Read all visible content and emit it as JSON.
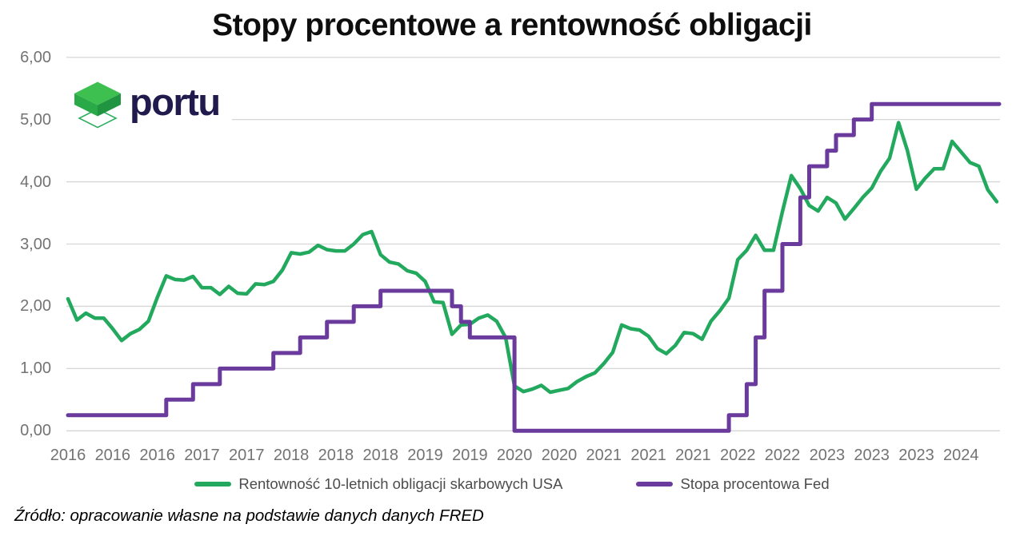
{
  "title": "Stopy procentowe a rentowność obligacji",
  "logo": {
    "brand": "portu"
  },
  "source_note": "Źródło: opracowanie własne na podstawie danych danych FRED",
  "colors": {
    "bond_yield_green": "#22a95e",
    "fed_rate_purple": "#6a3a9d",
    "gridline": "#d6d6d6",
    "axis_text": "#737373",
    "legend_text": "#4c4c4c",
    "title_text": "#0e0e0e",
    "brand_navy": "#211b4d",
    "cube_top": "#3dc04f",
    "cube_left": "#2aa948",
    "cube_right": "#209441",
    "cube_outline": "#2fae63"
  },
  "legend": [
    {
      "id": "bond-yield",
      "label": "Rentowność 10-letnich obligacji skarbowych USA",
      "color": "#22a95e"
    },
    {
      "id": "fed-rate",
      "label": "Stopa procentowa Fed",
      "color": "#6a3a9d"
    }
  ],
  "chart_data": {
    "type": "line",
    "title": "Stopy procentowe a rentowność obligacji",
    "xlabel": "",
    "ylabel": "",
    "ylim": [
      0,
      6
    ],
    "grid": "horizontal",
    "legend_position": "bottom",
    "y_tick_labels": [
      "6,00",
      "5,00",
      "4,00",
      "3,00",
      "2,00",
      "1,00",
      "0,00"
    ],
    "x_tick_labels": [
      "2016",
      "2016",
      "2016",
      "2017",
      "2017",
      "2018",
      "2018",
      "2018",
      "2019",
      "2019",
      "2020",
      "2020",
      "2021",
      "2021",
      "2021",
      "2022",
      "2022",
      "2023",
      "2023",
      "2023",
      "2024"
    ],
    "x_start_month": "2016-01",
    "x_interval": "monthly",
    "x_tick_every_months": 5,
    "series": [
      {
        "id": "bond-yield",
        "name": "Rentowność 10-letnich obligacji skarbowych USA",
        "color": "#22a95e",
        "style": "line",
        "values": [
          2.12,
          1.78,
          1.89,
          1.81,
          1.81,
          1.64,
          1.45,
          1.56,
          1.63,
          1.76,
          2.14,
          2.49,
          2.43,
          2.42,
          2.48,
          2.3,
          2.3,
          2.19,
          2.32,
          2.21,
          2.2,
          2.36,
          2.35,
          2.4,
          2.58,
          2.86,
          2.84,
          2.87,
          2.98,
          2.91,
          2.89,
          2.89,
          3.0,
          3.15,
          3.2,
          2.83,
          2.71,
          2.68,
          2.57,
          2.53,
          2.4,
          2.07,
          2.06,
          1.55,
          1.7,
          1.71,
          1.81,
          1.86,
          1.76,
          1.5,
          0.72,
          0.63,
          0.67,
          0.73,
          0.62,
          0.65,
          0.68,
          0.79,
          0.87,
          0.93,
          1.08,
          1.26,
          1.7,
          1.64,
          1.62,
          1.52,
          1.32,
          1.24,
          1.37,
          1.58,
          1.56,
          1.47,
          1.76,
          1.93,
          2.13,
          2.75,
          2.9,
          3.14,
          2.9,
          2.9,
          3.52,
          4.1,
          3.89,
          3.62,
          3.53,
          3.75,
          3.66,
          3.4,
          3.57,
          3.75,
          3.9,
          4.17,
          4.38,
          4.95,
          4.5,
          3.88,
          4.06,
          4.21,
          4.21,
          4.65,
          4.48,
          4.31,
          4.25,
          3.87,
          3.68
        ]
      },
      {
        "id": "fed-rate",
        "name": "Stopa procentowa Fed",
        "color": "#6a3a9d",
        "style": "step",
        "values": [
          0.25,
          0.25,
          0.25,
          0.25,
          0.25,
          0.25,
          0.25,
          0.25,
          0.25,
          0.25,
          0.25,
          0.5,
          0.5,
          0.5,
          0.75,
          0.75,
          0.75,
          1.0,
          1.0,
          1.0,
          1.0,
          1.0,
          1.0,
          1.25,
          1.25,
          1.25,
          1.5,
          1.5,
          1.5,
          1.75,
          1.75,
          1.75,
          2.0,
          2.0,
          2.0,
          2.25,
          2.25,
          2.25,
          2.25,
          2.25,
          2.25,
          2.25,
          2.25,
          2.0,
          1.75,
          1.5,
          1.5,
          1.5,
          1.5,
          1.5,
          0.0,
          0.0,
          0.0,
          0.0,
          0.0,
          0.0,
          0.0,
          0.0,
          0.0,
          0.0,
          0.0,
          0.0,
          0.0,
          0.0,
          0.0,
          0.0,
          0.0,
          0.0,
          0.0,
          0.0,
          0.0,
          0.0,
          0.0,
          0.0,
          0.25,
          0.25,
          0.75,
          1.5,
          2.25,
          2.25,
          3.0,
          3.0,
          3.75,
          4.25,
          4.25,
          4.5,
          4.75,
          4.75,
          5.0,
          5.0,
          5.25,
          5.25,
          5.25,
          5.25,
          5.25,
          5.25,
          5.25,
          5.25,
          5.25,
          5.25,
          5.25,
          5.25,
          5.25,
          5.25,
          5.25
        ]
      }
    ]
  }
}
